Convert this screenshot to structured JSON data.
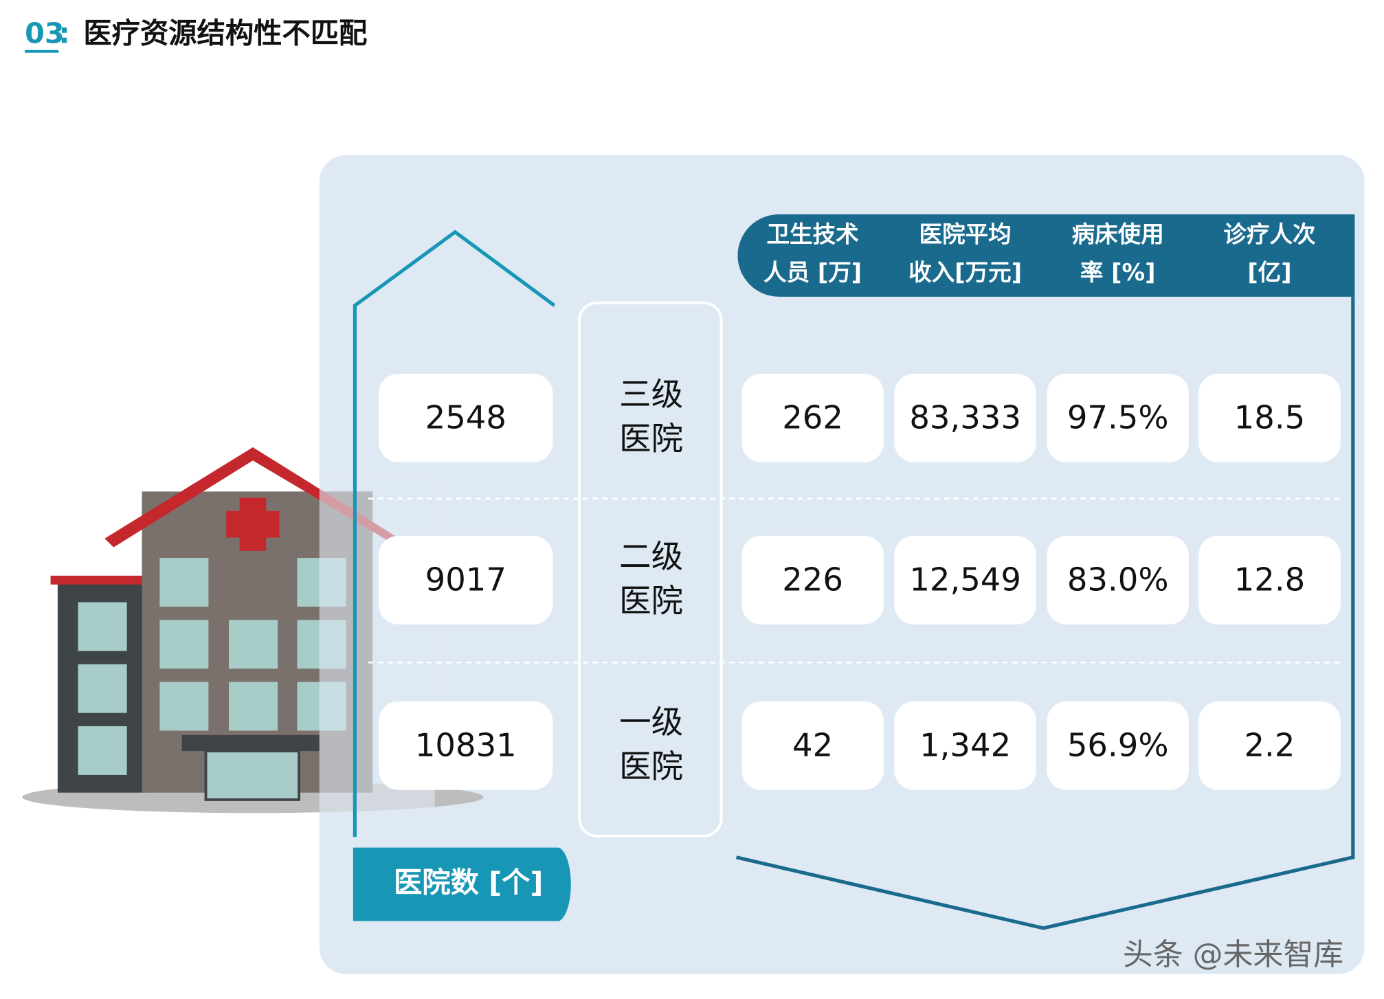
{
  "header": {
    "number": "03",
    "separator": ":",
    "title": "医疗资源结构性不匹配"
  },
  "table": {
    "columns": [
      [
        "卫生技术",
        "人员 [万]"
      ],
      [
        "医院平均",
        "收入[万元]"
      ],
      [
        "病床使用",
        "率 [%]"
      ],
      [
        "诊疗人次",
        "[亿]"
      ]
    ],
    "rows": [
      {
        "count": "2548",
        "level": [
          "三级",
          "医院"
        ],
        "values": [
          "262",
          "83,333",
          "97.5%",
          "18.5"
        ]
      },
      {
        "count": "9017",
        "level": [
          "二级",
          "医院"
        ],
        "values": [
          "226",
          "12,549",
          "83.0%",
          "12.8"
        ]
      },
      {
        "count": "10831",
        "level": [
          "一级",
          "医院"
        ],
        "values": [
          "42",
          "1,342",
          "56.9%",
          "2.2"
        ]
      }
    ],
    "count_label": "医院数 [个]"
  },
  "watermark": "头条 @未来智库"
}
